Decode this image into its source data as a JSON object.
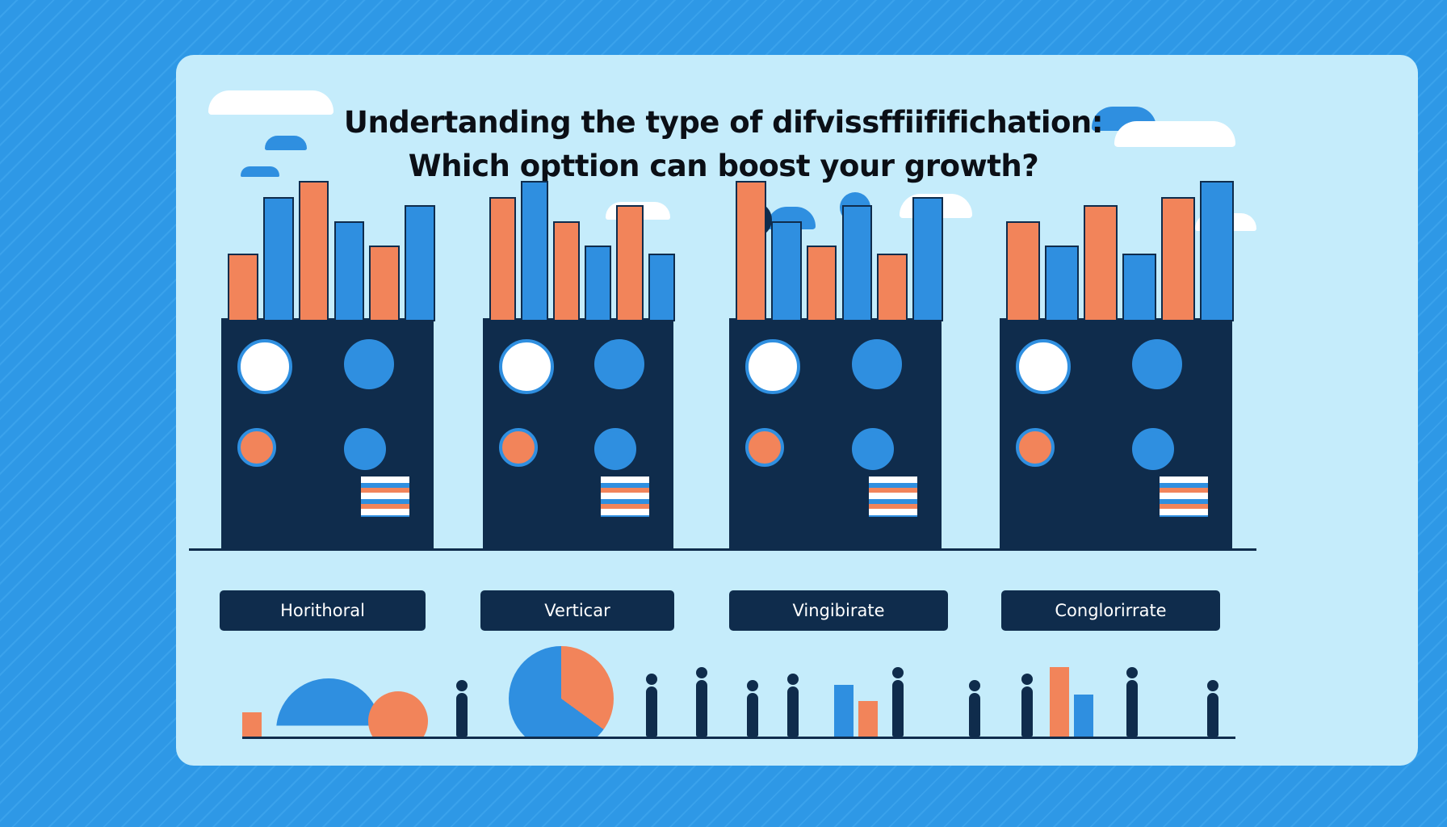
{
  "title": {
    "line1": "Undertanding the type of difvissffiififichation:",
    "line2": "Which opttion can boost your growth?"
  },
  "options": [
    {
      "label": "Horithoral"
    },
    {
      "label": "Verticar"
    },
    {
      "label": "Vingibirate"
    },
    {
      "label": "Conglorirrate"
    }
  ],
  "colors": {
    "background": "#2e98e6",
    "card": "#c5ecfb",
    "panel": "#0f2c4c",
    "accent_orange": "#f2845a",
    "accent_blue": "#2f8fe0"
  }
}
